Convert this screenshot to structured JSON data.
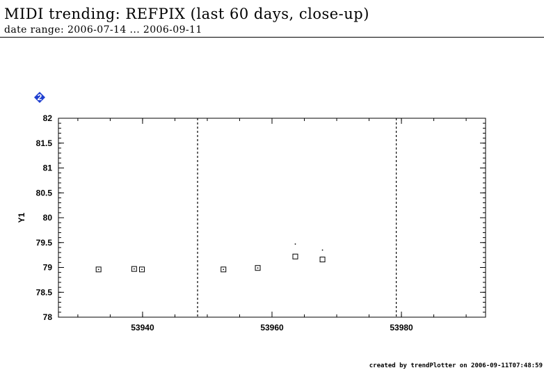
{
  "header": {
    "title": "MIDI trending: REFPIX (last 60 days, close-up)",
    "subtitle": "date range: 2006-07-14 ... 2006-09-11"
  },
  "panel": {
    "marker_label": "2",
    "marker_color": "#1f3fd0"
  },
  "footer": {
    "credit": "created by trendPlotter on 2006-09-11T07:48:59"
  },
  "chart_data": {
    "type": "scatter",
    "ylabel": "Y1",
    "xlabel": "",
    "xlim": [
      53927,
      53993
    ],
    "ylim": [
      78,
      82
    ],
    "x_ticks": [
      53940,
      53960,
      53980
    ],
    "y_ticks": [
      78,
      78.5,
      79,
      79.5,
      80,
      80.5,
      81,
      81.5,
      82
    ],
    "y_tick_labels": [
      "78",
      "78.5",
      "79",
      "79.5",
      "80",
      "80.5",
      "81",
      "81.5",
      "82"
    ],
    "vertical_markers": [
      53948.5,
      53979.2
    ],
    "series": [
      {
        "marker": "square",
        "x": [
          53933.2,
          53938.7,
          53939.9,
          53952.5,
          53957.8,
          53963.6,
          53967.8
        ],
        "y": [
          78.96,
          78.97,
          78.96,
          78.96,
          78.99,
          79.22,
          79.16
        ]
      },
      {
        "marker": "dot",
        "x": [
          53933.2,
          53938.7,
          53939.9,
          53952.5,
          53957.8,
          53963.6,
          53967.8
        ],
        "y": [
          78.96,
          78.97,
          78.96,
          78.96,
          78.99,
          79.47,
          79.35
        ]
      }
    ],
    "grid": false
  }
}
